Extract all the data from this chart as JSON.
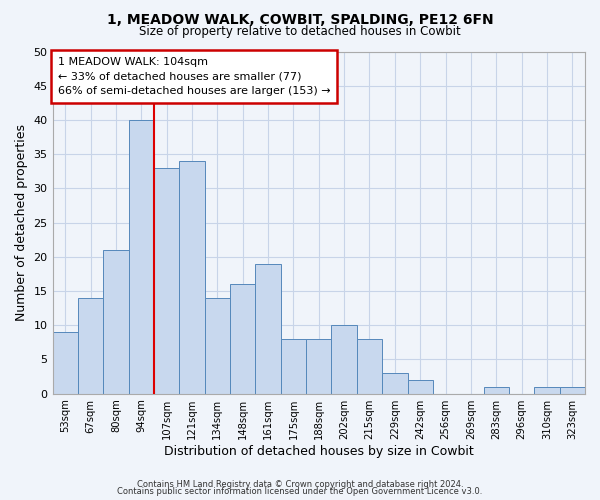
{
  "title1": "1, MEADOW WALK, COWBIT, SPALDING, PE12 6FN",
  "title2": "Size of property relative to detached houses in Cowbit",
  "xlabel": "Distribution of detached houses by size in Cowbit",
  "ylabel": "Number of detached properties",
  "bin_labels": [
    "53sqm",
    "67sqm",
    "80sqm",
    "94sqm",
    "107sqm",
    "121sqm",
    "134sqm",
    "148sqm",
    "161sqm",
    "175sqm",
    "188sqm",
    "202sqm",
    "215sqm",
    "229sqm",
    "242sqm",
    "256sqm",
    "269sqm",
    "283sqm",
    "296sqm",
    "310sqm",
    "323sqm"
  ],
  "bar_heights": [
    9,
    14,
    21,
    40,
    33,
    34,
    14,
    16,
    19,
    8,
    8,
    10,
    8,
    3,
    2,
    0,
    0,
    1,
    0,
    1,
    1
  ],
  "bar_color": "#c8d8ee",
  "bar_edge_color": "#5588bb",
  "vline_x_index": 4,
  "vline_color": "#dd0000",
  "ylim": [
    0,
    50
  ],
  "yticks": [
    0,
    5,
    10,
    15,
    20,
    25,
    30,
    35,
    40,
    45,
    50
  ],
  "annotation_line1": "1 MEADOW WALK: 104sqm",
  "annotation_line2": "← 33% of detached houses are smaller (77)",
  "annotation_line3": "66% of semi-detached houses are larger (153) →",
  "footer_line1": "Contains HM Land Registry data © Crown copyright and database right 2024.",
  "footer_line2": "Contains public sector information licensed under the Open Government Licence v3.0.",
  "bg_color": "#f0f4fa",
  "plot_bg_color": "#f0f4fa",
  "grid_color": "#c8d4e8"
}
